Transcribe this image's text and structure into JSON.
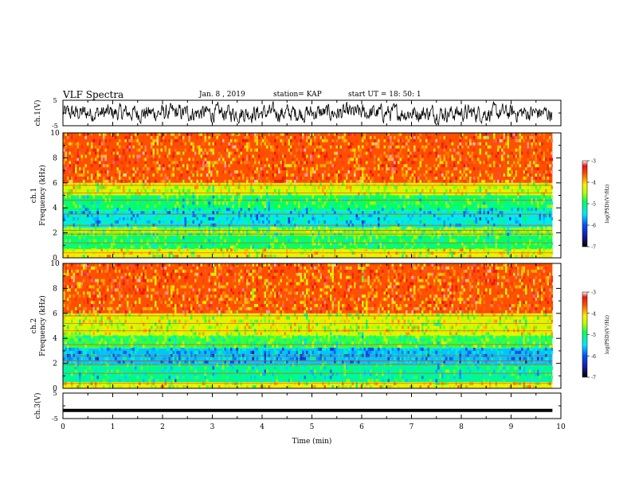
{
  "header": {
    "title": "VLF Spectra",
    "date": "Jan. 8 , 2019",
    "station": "station= KAP",
    "start": "start UT = 18: 50: 1"
  },
  "chart_data": [
    {
      "type": "line",
      "panel": "waveform-ch1",
      "ylabel": "ch.1(V)",
      "ylim": [
        -5,
        5
      ],
      "ytick_labels": [
        "5",
        "-5"
      ],
      "description_series": "noisy voltage trace around 0 V",
      "color": "#000000"
    },
    {
      "type": "heatmap",
      "panel": "spectrogram-ch1",
      "ylabel": "ch.1\nFrequency (kHz)",
      "ylim": [
        0,
        10
      ],
      "ytick_labels": [
        "0",
        "2",
        "4",
        "6",
        "8",
        "10"
      ],
      "colorbar": {
        "label": "log(PSD)(V²/Hz)",
        "range": [
          -7,
          -3
        ],
        "tick_labels": [
          "-3",
          "-4",
          "-5",
          "-6",
          "-7"
        ]
      },
      "bands_kHz": [
        {
          "from": 0.0,
          "to": 0.7,
          "level": -4.2
        },
        {
          "from": 0.7,
          "to": 1.8,
          "level": -4.9
        },
        {
          "from": 1.8,
          "to": 2.4,
          "level": -4.6
        },
        {
          "from": 2.4,
          "to": 3.8,
          "level": -5.4
        },
        {
          "from": 3.8,
          "to": 5.0,
          "level": -4.9
        },
        {
          "from": 5.0,
          "to": 6.0,
          "level": -4.3
        },
        {
          "from": 6.0,
          "to": 10.0,
          "level": -3.6
        }
      ]
    },
    {
      "type": "heatmap",
      "panel": "spectrogram-ch2",
      "ylabel": "ch.2\nFrequency (kHz)",
      "ylim": [
        0,
        10
      ],
      "ytick_labels": [
        "0",
        "2",
        "4",
        "6",
        "8",
        "10"
      ],
      "colorbar": {
        "label": "log(PSD)(V²/Hz)",
        "range": [
          -7,
          -3
        ],
        "tick_labels": [
          "-3",
          "-4",
          "-5",
          "-6",
          "-7"
        ]
      },
      "bands_kHz": [
        {
          "from": 0.0,
          "to": 0.5,
          "level": -4.2
        },
        {
          "from": 0.5,
          "to": 1.9,
          "level": -5.1
        },
        {
          "from": 1.9,
          "to": 3.2,
          "level": -5.6
        },
        {
          "from": 3.2,
          "to": 4.2,
          "level": -4.8
        },
        {
          "from": 4.2,
          "to": 6.0,
          "level": -4.3
        },
        {
          "from": 6.0,
          "to": 10.0,
          "level": -3.6
        }
      ]
    },
    {
      "type": "line",
      "panel": "waveform-ch3",
      "ylabel": "ch.3(V)",
      "ylim": [
        -5,
        5
      ],
      "ytick_labels": [
        "5",
        "-5"
      ],
      "constant_value": -1.8,
      "color": "#000000"
    }
  ],
  "xaxis": {
    "label": "Time (min)",
    "xlim": [
      0,
      10
    ],
    "tick_labels": [
      "0",
      "1",
      "2",
      "3",
      "4",
      "5",
      "6",
      "7",
      "8",
      "9",
      "10"
    ],
    "data_end": 9.83
  }
}
